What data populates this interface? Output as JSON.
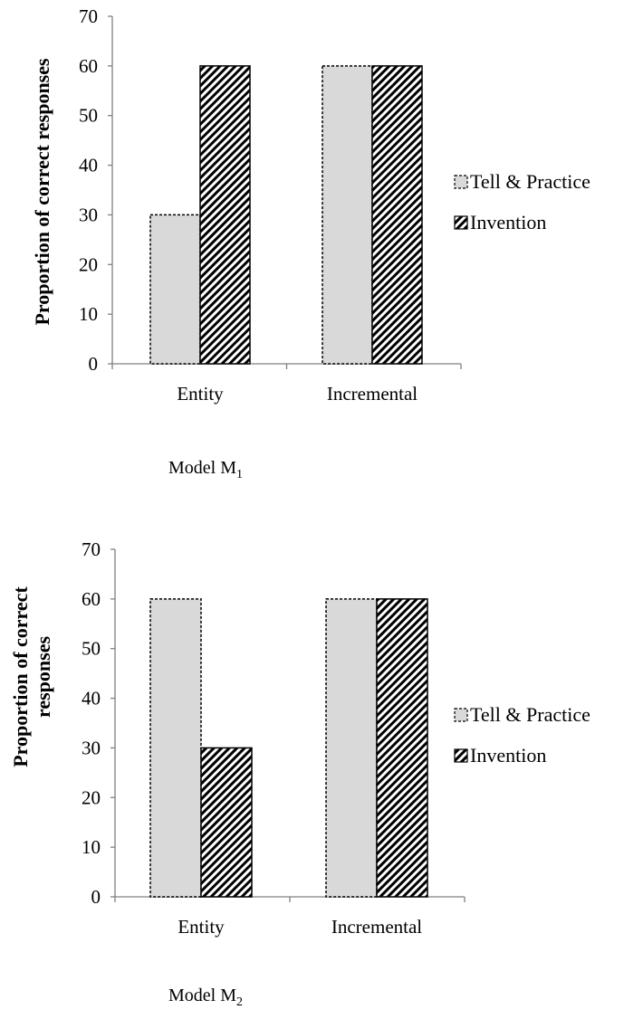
{
  "chart_data": [
    {
      "type": "bar",
      "categories": [
        "Entity",
        "Incremental"
      ],
      "series": [
        {
          "name": "Tell & Practice",
          "values": [
            30,
            60
          ]
        },
        {
          "name": "Invention",
          "values": [
            60,
            60
          ]
        }
      ],
      "ylabel": "Proportion of correct responses",
      "caption": "Model M",
      "caption_sub": "1",
      "ylim": [
        0,
        70
      ],
      "yticks": [
        0,
        10,
        20,
        30,
        40,
        50,
        60,
        70
      ],
      "legend": "right",
      "grid": false
    },
    {
      "type": "bar",
      "categories": [
        "Entity",
        "Incremental"
      ],
      "series": [
        {
          "name": "Tell & Practice",
          "values": [
            60,
            60
          ]
        },
        {
          "name": "Invention",
          "values": [
            30,
            60
          ]
        }
      ],
      "ylabel": "Proportion of correct responses",
      "ylabel_lines": [
        "Proportion of correct",
        "responses"
      ],
      "caption": "Model M",
      "caption_sub": "2",
      "ylim": [
        0,
        70
      ],
      "yticks": [
        0,
        10,
        20,
        30,
        40,
        50,
        60,
        70
      ],
      "legend": "right",
      "grid": false
    }
  ],
  "colors": {
    "tell_practice_fill": "#d9d9d9",
    "invention_hatch": "#000000",
    "axis": "#808080"
  }
}
